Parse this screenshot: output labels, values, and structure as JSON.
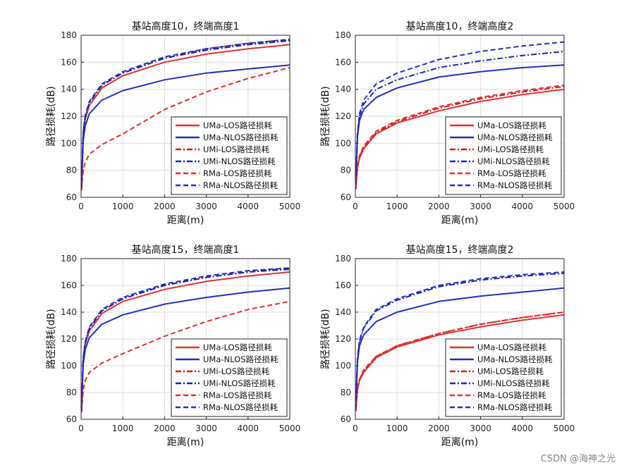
{
  "watermark": "CSDN @海神之光",
  "chart_data": [
    {
      "type": "line",
      "title": "基站高度10，终端高度1",
      "xlabel": "距离(m)",
      "ylabel": "路径损耗(dB)",
      "xlim": [
        0,
        5000
      ],
      "ylim": [
        60,
        180
      ],
      "xticks": [
        0,
        1000,
        2000,
        3000,
        4000,
        5000
      ],
      "yticks": [
        60,
        80,
        100,
        120,
        140,
        160,
        180
      ],
      "grid": true,
      "legend_position": "bottom-right",
      "series": [
        {
          "name": "UMa-LOS路径损耗",
          "color": "#e03030",
          "dash": "solid",
          "x": [
            10,
            50,
            100,
            200,
            500,
            1000,
            2000,
            3000,
            4000,
            5000
          ],
          "values": [
            67,
            106,
            118,
            128,
            141,
            150,
            160,
            166,
            170,
            173
          ]
        },
        {
          "name": "UMa-NLOS路径损耗",
          "color": "#2030c0",
          "dash": "solid",
          "x": [
            10,
            50,
            100,
            200,
            500,
            1000,
            2000,
            3000,
            4000,
            5000
          ],
          "values": [
            67,
            102,
            113,
            122,
            132,
            139,
            147,
            152,
            155,
            158
          ]
        },
        {
          "name": "UMi-LOS路径损耗",
          "color": "#c02020",
          "dash": "dashdot",
          "x": [
            10,
            50,
            100,
            200,
            500,
            1000,
            2000,
            3000,
            4000,
            5000
          ],
          "values": [
            67,
            108,
            120,
            130,
            143,
            152,
            163,
            170,
            174,
            177
          ]
        },
        {
          "name": "UMi-NLOS路径损耗",
          "color": "#1a28a8",
          "dash": "dashdot",
          "x": [
            10,
            50,
            100,
            200,
            500,
            1000,
            2000,
            3000,
            4000,
            5000
          ],
          "values": [
            67,
            107,
            119,
            130,
            143,
            152,
            163,
            169,
            173,
            176
          ]
        },
        {
          "name": "RMa-LOS路径损耗",
          "color": "#e03030",
          "dash": "dashed",
          "x": [
            10,
            50,
            100,
            200,
            500,
            1000,
            2000,
            3000,
            4000,
            5000
          ],
          "values": [
            65,
            80,
            86,
            92,
            99,
            107,
            125,
            138,
            148,
            156
          ]
        },
        {
          "name": "RMa-NLOS路径损耗",
          "color": "#2030c0",
          "dash": "dashed",
          "x": [
            10,
            50,
            100,
            200,
            500,
            1000,
            2000,
            3000,
            4000,
            5000
          ],
          "values": [
            67,
            108,
            121,
            131,
            144,
            153,
            164,
            170,
            174,
            177
          ]
        }
      ]
    },
    {
      "type": "line",
      "title": "基站高度10，终端高度2",
      "xlabel": "距离(m)",
      "ylabel": "路径损耗(dB)",
      "xlim": [
        0,
        5000
      ],
      "ylim": [
        60,
        180
      ],
      "xticks": [
        0,
        1000,
        2000,
        3000,
        4000,
        5000
      ],
      "yticks": [
        60,
        80,
        100,
        120,
        140,
        160,
        180
      ],
      "grid": true,
      "legend_position": "bottom-right",
      "series": [
        {
          "name": "UMa-LOS路径损耗",
          "color": "#e03030",
          "dash": "solid",
          "x": [
            10,
            50,
            100,
            200,
            500,
            1000,
            2000,
            3000,
            4000,
            5000
          ],
          "values": [
            66,
            82,
            89,
            96,
            107,
            115,
            124,
            131,
            136,
            140
          ]
        },
        {
          "name": "UMa-NLOS路径损耗",
          "color": "#2030c0",
          "dash": "solid",
          "x": [
            10,
            50,
            100,
            200,
            500,
            1000,
            2000,
            3000,
            4000,
            5000
          ],
          "values": [
            70,
            105,
            117,
            125,
            134,
            141,
            149,
            153,
            156,
            158
          ]
        },
        {
          "name": "UMi-LOS路径损耗",
          "color": "#c02020",
          "dash": "dashdot",
          "x": [
            10,
            50,
            100,
            200,
            500,
            1000,
            2000,
            3000,
            4000,
            5000
          ],
          "values": [
            66,
            83,
            90,
            97,
            108,
            116,
            126,
            133,
            138,
            142
          ]
        },
        {
          "name": "UMi-NLOS路径损耗",
          "color": "#1a28a8",
          "dash": "dashdot",
          "x": [
            10,
            50,
            100,
            200,
            500,
            1000,
            2000,
            3000,
            4000,
            5000
          ],
          "values": [
            70,
            107,
            120,
            129,
            140,
            147,
            156,
            161,
            165,
            168
          ]
        },
        {
          "name": "RMa-LOS路径损耗",
          "color": "#e03030",
          "dash": "dashed",
          "x": [
            10,
            50,
            100,
            200,
            500,
            1000,
            2000,
            3000,
            4000,
            5000
          ],
          "values": [
            66,
            84,
            91,
            98,
            109,
            117,
            127,
            134,
            139,
            143
          ]
        },
        {
          "name": "RMa-NLOS路径损耗",
          "color": "#2030c0",
          "dash": "dashed",
          "x": [
            10,
            50,
            100,
            200,
            500,
            1000,
            2000,
            3000,
            4000,
            5000
          ],
          "values": [
            70,
            108,
            122,
            132,
            144,
            152,
            162,
            168,
            172,
            175
          ]
        }
      ]
    },
    {
      "type": "line",
      "title": "基站高度15，终端高度1",
      "xlabel": "距离(m)",
      "ylabel": "路径损耗(dB)",
      "xlim": [
        0,
        5000
      ],
      "ylim": [
        60,
        180
      ],
      "xticks": [
        0,
        1000,
        2000,
        3000,
        4000,
        5000
      ],
      "yticks": [
        60,
        80,
        100,
        120,
        140,
        160,
        180
      ],
      "grid": true,
      "legend_position": "bottom-right",
      "series": [
        {
          "name": "UMa-LOS路径损耗",
          "color": "#e03030",
          "dash": "solid",
          "x": [
            10,
            50,
            100,
            200,
            500,
            1000,
            2000,
            3000,
            4000,
            5000
          ],
          "values": [
            66,
            104,
            116,
            126,
            139,
            148,
            157,
            163,
            167,
            170
          ]
        },
        {
          "name": "UMa-NLOS路径损耗",
          "color": "#2030c0",
          "dash": "solid",
          "x": [
            10,
            50,
            100,
            200,
            500,
            1000,
            2000,
            3000,
            4000,
            5000
          ],
          "values": [
            66,
            101,
            112,
            121,
            131,
            138,
            146,
            151,
            155,
            158
          ]
        },
        {
          "name": "UMi-LOS路径损耗",
          "color": "#c02020",
          "dash": "dashdot",
          "x": [
            10,
            50,
            100,
            200,
            500,
            1000,
            2000,
            3000,
            4000,
            5000
          ],
          "values": [
            66,
            105,
            117,
            128,
            141,
            150,
            160,
            166,
            170,
            173
          ]
        },
        {
          "name": "UMi-NLOS路径损耗",
          "color": "#1a28a8",
          "dash": "dashdot",
          "x": [
            10,
            50,
            100,
            200,
            500,
            1000,
            2000,
            3000,
            4000,
            5000
          ],
          "values": [
            66,
            105,
            117,
            128,
            141,
            150,
            160,
            166,
            170,
            172
          ]
        },
        {
          "name": "RMa-LOS路径损耗",
          "color": "#e03030",
          "dash": "dashed",
          "x": [
            10,
            50,
            100,
            200,
            500,
            1000,
            2000,
            3000,
            4000,
            5000
          ],
          "values": [
            65,
            82,
            89,
            95,
            102,
            109,
            122,
            133,
            142,
            148
          ]
        },
        {
          "name": "RMa-NLOS路径损耗",
          "color": "#2030c0",
          "dash": "dashed",
          "x": [
            10,
            50,
            100,
            200,
            500,
            1000,
            2000,
            3000,
            4000,
            5000
          ],
          "values": [
            66,
            106,
            118,
            129,
            142,
            151,
            161,
            167,
            171,
            173
          ]
        }
      ]
    },
    {
      "type": "line",
      "title": "基站高度15，终端高度2",
      "xlabel": "距离(m)",
      "ylabel": "路径损耗(dB)",
      "xlim": [
        0,
        5000
      ],
      "ylim": [
        60,
        180
      ],
      "xticks": [
        0,
        1000,
        2000,
        3000,
        4000,
        5000
      ],
      "yticks": [
        60,
        80,
        100,
        120,
        140,
        160,
        180
      ],
      "grid": true,
      "legend_position": "bottom-right",
      "series": [
        {
          "name": "UMa-LOS路径损耗",
          "color": "#e03030",
          "dash": "solid",
          "x": [
            10,
            50,
            100,
            200,
            500,
            1000,
            2000,
            3000,
            4000,
            5000
          ],
          "values": [
            66,
            82,
            89,
            95,
            106,
            114,
            123,
            129,
            134,
            138
          ]
        },
        {
          "name": "UMa-NLOS路径损耗",
          "color": "#2030c0",
          "dash": "solid",
          "x": [
            10,
            50,
            100,
            200,
            500,
            1000,
            2000,
            3000,
            4000,
            5000
          ],
          "values": [
            68,
            103,
            115,
            123,
            133,
            140,
            148,
            152,
            155,
            158
          ]
        },
        {
          "name": "UMi-LOS路径损耗",
          "color": "#c02020",
          "dash": "dashdot",
          "x": [
            10,
            50,
            100,
            200,
            500,
            1000,
            2000,
            3000,
            4000,
            5000
          ],
          "values": [
            66,
            83,
            90,
            96,
            107,
            115,
            124,
            131,
            136,
            140
          ]
        },
        {
          "name": "UMi-NLOS路径损耗",
          "color": "#1a28a8",
          "dash": "dashdot",
          "x": [
            10,
            50,
            100,
            200,
            500,
            1000,
            2000,
            3000,
            4000,
            5000
          ],
          "values": [
            68,
            105,
            118,
            128,
            141,
            149,
            159,
            164,
            167,
            169
          ]
        },
        {
          "name": "RMa-LOS路径损耗",
          "color": "#e03030",
          "dash": "dashed",
          "x": [
            10,
            50,
            100,
            200,
            500,
            1000,
            2000,
            3000,
            4000,
            5000
          ],
          "values": [
            66,
            84,
            90,
            97,
            107,
            115,
            124,
            131,
            136,
            140
          ]
        },
        {
          "name": "RMa-NLOS路径损耗",
          "color": "#2030c0",
          "dash": "dashed",
          "x": [
            10,
            50,
            100,
            200,
            500,
            1000,
            2000,
            3000,
            4000,
            5000
          ],
          "values": [
            68,
            106,
            119,
            129,
            142,
            150,
            160,
            165,
            168,
            170
          ]
        }
      ]
    }
  ]
}
